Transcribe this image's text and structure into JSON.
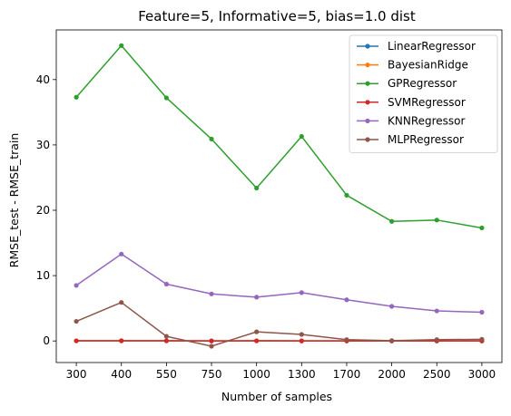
{
  "chart_data": {
    "type": "line",
    "title": "Feature=5, Informative=5, bias=1.0 dist",
    "xlabel": "Number of samples",
    "ylabel": "RMSE_test - RMSE_train",
    "categories": [
      "300",
      "400",
      "550",
      "750",
      "1000",
      "1300",
      "1700",
      "2000",
      "2500",
      "3000"
    ],
    "ylim": [
      -3.3,
      47.6
    ],
    "yticks": [
      0,
      10,
      20,
      30,
      40
    ],
    "grid": false,
    "legend_position": "top-right",
    "series": [
      {
        "name": "LinearRegressor",
        "color": "#1f77b4",
        "values": [
          0.02,
          0.03,
          0.02,
          0.01,
          0.02,
          0.01,
          0.01,
          0.01,
          0.01,
          0.01
        ]
      },
      {
        "name": "BayesianRidge",
        "color": "#ff7f0e",
        "values": [
          0.02,
          0.03,
          0.02,
          0.01,
          0.02,
          0.01,
          0.01,
          0.01,
          0.01,
          0.01
        ]
      },
      {
        "name": "GPRegressor",
        "color": "#2ca02c",
        "values": [
          37.3,
          45.2,
          37.2,
          30.9,
          23.4,
          31.3,
          22.3,
          18.3,
          18.5,
          17.3
        ]
      },
      {
        "name": "SVMRegressor",
        "color": "#d62728",
        "values": [
          0.02,
          0.03,
          0.02,
          0.01,
          0.02,
          0.01,
          0.01,
          0.01,
          0.01,
          0.01
        ]
      },
      {
        "name": "KNNRegressor",
        "color": "#9467bd",
        "values": [
          8.5,
          13.3,
          8.7,
          7.2,
          6.7,
          7.4,
          6.3,
          5.3,
          4.6,
          4.4
        ]
      },
      {
        "name": "MLPRegressor",
        "color": "#8c564b",
        "values": [
          3.0,
          5.9,
          0.7,
          -0.8,
          1.4,
          1.0,
          0.2,
          0.05,
          0.2,
          0.25
        ]
      }
    ]
  }
}
